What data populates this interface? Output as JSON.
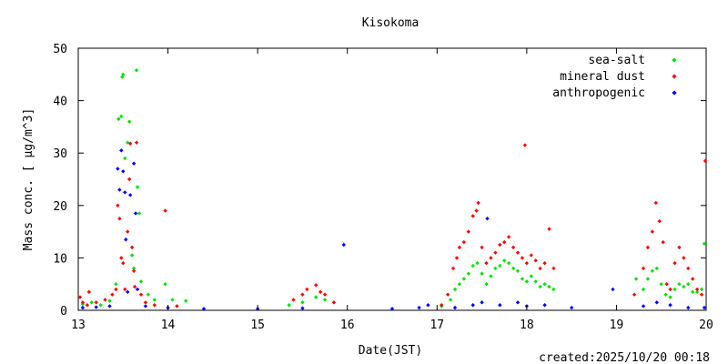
{
  "chart_data": {
    "type": "scatter",
    "title": "Kisokoma",
    "xlabel": "Date(JST)",
    "ylabel": "Mass conc. [ μg/m^3]",
    "xlim": [
      13,
      20
    ],
    "ylim": [
      0,
      50
    ],
    "xticks": [
      "13",
      "14",
      "15",
      "16",
      "17",
      "18",
      "19",
      "20"
    ],
    "yticks": [
      "0",
      "10",
      "20",
      "30",
      "40",
      "50"
    ],
    "grid": false,
    "legend_position": "top-right",
    "footer": "created:2025/10/20 00:18",
    "series": [
      {
        "name": "sea-salt",
        "color": "#00e000",
        "points": [
          [
            13.05,
            1.2
          ],
          [
            13.15,
            1.5
          ],
          [
            13.25,
            1.0
          ],
          [
            13.35,
            1.8
          ],
          [
            13.42,
            5.0
          ],
          [
            13.45,
            36.5
          ],
          [
            13.48,
            37.0
          ],
          [
            13.49,
            44.5
          ],
          [
            13.5,
            45.0
          ],
          [
            13.52,
            29.0
          ],
          [
            13.55,
            32.0
          ],
          [
            13.57,
            36.0
          ],
          [
            13.6,
            10.5
          ],
          [
            13.62,
            8.0
          ],
          [
            13.65,
            45.8
          ],
          [
            13.66,
            23.5
          ],
          [
            13.68,
            18.5
          ],
          [
            13.7,
            5.5
          ],
          [
            13.78,
            3.0
          ],
          [
            13.85,
            2.0
          ],
          [
            13.97,
            5.0
          ],
          [
            14.05,
            2.0
          ],
          [
            14.2,
            1.8
          ],
          [
            15.35,
            1.0
          ],
          [
            15.5,
            1.5
          ],
          [
            15.65,
            2.5
          ],
          [
            15.75,
            2.0
          ],
          [
            15.85,
            1.5
          ],
          [
            17.05,
            0.8
          ],
          [
            17.15,
            2.0
          ],
          [
            17.2,
            4.0
          ],
          [
            17.25,
            5.0
          ],
          [
            17.3,
            6.0
          ],
          [
            17.35,
            7.0
          ],
          [
            17.4,
            8.5
          ],
          [
            17.45,
            9.0
          ],
          [
            17.5,
            7.0
          ],
          [
            17.55,
            5.0
          ],
          [
            17.6,
            6.5
          ],
          [
            17.65,
            8.0
          ],
          [
            17.7,
            8.5
          ],
          [
            17.75,
            9.5
          ],
          [
            17.8,
            9.0
          ],
          [
            17.85,
            8.0
          ],
          [
            17.9,
            7.5
          ],
          [
            17.95,
            6.0
          ],
          [
            18.0,
            5.5
          ],
          [
            18.05,
            6.5
          ],
          [
            18.1,
            5.5
          ],
          [
            18.15,
            4.5
          ],
          [
            18.2,
            5.0
          ],
          [
            18.25,
            4.5
          ],
          [
            18.3,
            4.0
          ],
          [
            19.22,
            6.0
          ],
          [
            19.3,
            4.0
          ],
          [
            19.35,
            6.0
          ],
          [
            19.4,
            7.5
          ],
          [
            19.45,
            8.0
          ],
          [
            19.5,
            5.0
          ],
          [
            19.55,
            3.0
          ],
          [
            19.6,
            2.5
          ],
          [
            19.65,
            4.0
          ],
          [
            19.7,
            5.0
          ],
          [
            19.75,
            4.5
          ],
          [
            19.8,
            5.0
          ],
          [
            19.85,
            3.5
          ],
          [
            19.9,
            3.5
          ],
          [
            19.95,
            4.0
          ],
          [
            19.98,
            12.7
          ]
        ]
      },
      {
        "name": "mineral dust",
        "color": "#ff0000",
        "points": [
          [
            13.02,
            2.5
          ],
          [
            13.05,
            1.5
          ],
          [
            13.1,
            1.0
          ],
          [
            13.12,
            3.5
          ],
          [
            13.2,
            1.5
          ],
          [
            13.3,
            2.0
          ],
          [
            13.38,
            3.0
          ],
          [
            13.42,
            4.0
          ],
          [
            13.44,
            20.0
          ],
          [
            13.46,
            17.5
          ],
          [
            13.48,
            10.0
          ],
          [
            13.5,
            9.0
          ],
          [
            13.52,
            4.0
          ],
          [
            13.55,
            15.0
          ],
          [
            13.57,
            25.0
          ],
          [
            13.58,
            31.8
          ],
          [
            13.6,
            12.0
          ],
          [
            13.62,
            7.5
          ],
          [
            13.63,
            4.5
          ],
          [
            13.65,
            32.0
          ],
          [
            13.7,
            3.0
          ],
          [
            13.75,
            1.5
          ],
          [
            13.85,
            1.0
          ],
          [
            13.97,
            19.0
          ],
          [
            14.1,
            0.8
          ],
          [
            15.4,
            2.0
          ],
          [
            15.5,
            3.0
          ],
          [
            15.55,
            4.0
          ],
          [
            15.65,
            4.8
          ],
          [
            15.7,
            3.5
          ],
          [
            15.75,
            3.0
          ],
          [
            15.85,
            1.5
          ],
          [
            17.05,
            1.0
          ],
          [
            17.12,
            3.0
          ],
          [
            17.18,
            8.0
          ],
          [
            17.22,
            10.0
          ],
          [
            17.25,
            12.0
          ],
          [
            17.3,
            13.0
          ],
          [
            17.35,
            15.0
          ],
          [
            17.4,
            18.0
          ],
          [
            17.44,
            19.0
          ],
          [
            17.46,
            20.5
          ],
          [
            17.5,
            12.0
          ],
          [
            17.55,
            9.0
          ],
          [
            17.6,
            10.0
          ],
          [
            17.65,
            11.0
          ],
          [
            17.7,
            12.5
          ],
          [
            17.75,
            13.0
          ],
          [
            17.8,
            14.0
          ],
          [
            17.85,
            12.0
          ],
          [
            17.9,
            11.0
          ],
          [
            17.95,
            10.0
          ],
          [
            17.98,
            31.5
          ],
          [
            18.0,
            9.0
          ],
          [
            18.05,
            10.5
          ],
          [
            18.1,
            9.5
          ],
          [
            18.15,
            8.0
          ],
          [
            18.2,
            9.0
          ],
          [
            18.25,
            15.5
          ],
          [
            18.3,
            8.0
          ],
          [
            19.2,
            3.0
          ],
          [
            19.3,
            8.0
          ],
          [
            19.35,
            12.0
          ],
          [
            19.4,
            15.0
          ],
          [
            19.44,
            20.5
          ],
          [
            19.48,
            17.0
          ],
          [
            19.52,
            13.0
          ],
          [
            19.56,
            5.0
          ],
          [
            19.6,
            4.0
          ],
          [
            19.65,
            9.0
          ],
          [
            19.7,
            12.0
          ],
          [
            19.75,
            10.0
          ],
          [
            19.8,
            8.0
          ],
          [
            19.85,
            6.0
          ],
          [
            19.9,
            4.0
          ],
          [
            19.95,
            3.0
          ],
          [
            19.99,
            28.5
          ]
        ]
      },
      {
        "name": "anthropogenic",
        "color": "#0000ff",
        "points": [
          [
            13.05,
            0.5
          ],
          [
            13.2,
            0.6
          ],
          [
            13.35,
            0.8
          ],
          [
            13.44,
            27.0
          ],
          [
            13.46,
            23.0
          ],
          [
            13.48,
            30.5
          ],
          [
            13.5,
            26.5
          ],
          [
            13.52,
            22.5
          ],
          [
            13.53,
            13.5
          ],
          [
            13.55,
            3.5
          ],
          [
            13.58,
            22.0
          ],
          [
            13.62,
            28.0
          ],
          [
            13.64,
            18.5
          ],
          [
            13.66,
            4.0
          ],
          [
            13.75,
            0.8
          ],
          [
            14.0,
            0.5
          ],
          [
            14.4,
            0.3
          ],
          [
            15.0,
            0.3
          ],
          [
            15.5,
            0.4
          ],
          [
            15.96,
            12.5
          ],
          [
            16.5,
            0.3
          ],
          [
            16.8,
            0.5
          ],
          [
            16.9,
            1.0
          ],
          [
            17.2,
            0.5
          ],
          [
            17.4,
            1.0
          ],
          [
            17.5,
            1.5
          ],
          [
            17.56,
            17.5
          ],
          [
            17.7,
            1.0
          ],
          [
            17.9,
            1.5
          ],
          [
            18.0,
            0.8
          ],
          [
            18.2,
            1.0
          ],
          [
            18.5,
            0.5
          ],
          [
            18.96,
            4.0
          ],
          [
            19.3,
            0.8
          ],
          [
            19.45,
            1.5
          ],
          [
            19.6,
            1.0
          ],
          [
            19.8,
            0.5
          ],
          [
            19.98,
            0.5
          ]
        ]
      }
    ]
  }
}
